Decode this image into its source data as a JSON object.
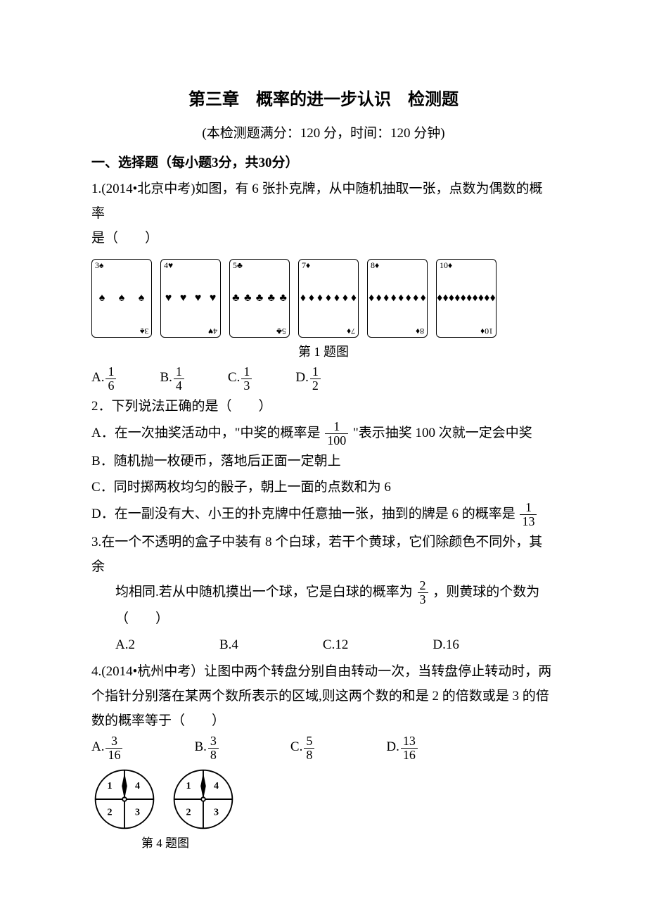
{
  "colors": {
    "text": "#000000",
    "bg": "#ffffff",
    "card_border": "#000000"
  },
  "title": "第三章　概率的进一步认识　检测题",
  "subtitle": "(本检测题满分：120 分，时间：120 分钟)",
  "section1": "一、选择题（每小题3分，共30分）",
  "q1": {
    "text_a": "1.(2014•北京中考)如图，有 6 张扑克牌，从中随机抽取一张，点数为偶数的概率",
    "text_b": "是（　　）",
    "caption": "第 1 题图",
    "cards": [
      {
        "n": "3",
        "suit": "♠",
        "pips": 3
      },
      {
        "n": "4",
        "suit": "♥",
        "pips": 4
      },
      {
        "n": "5",
        "suit": "♣",
        "pips": 5
      },
      {
        "n": "7",
        "suit": "♦",
        "pips": 7
      },
      {
        "n": "8",
        "suit": "♦",
        "pips": 8
      },
      {
        "n": "10",
        "suit": "♦",
        "pips": 10
      }
    ],
    "card_style": {
      "width": 84,
      "height": 110,
      "border_radius": 6,
      "border_color": "#000000"
    },
    "opts": {
      "A": {
        "label": "A.",
        "num": "1",
        "den": "6"
      },
      "B": {
        "label": "B.",
        "num": "1",
        "den": "4"
      },
      "C": {
        "label": "C.",
        "num": "1",
        "den": "3"
      },
      "D": {
        "label": "D.",
        "num": "1",
        "den": "2"
      }
    }
  },
  "q2": {
    "stem": "2．下列说法正确的是（　　）",
    "A": {
      "pre": "A．在一次抽奖活动中，\"中奖的概率是",
      "num": "1",
      "den": "100",
      "post": "\"表示抽奖 100 次就一定会中奖"
    },
    "B": "B．随机抛一枚硬币，落地后正面一定朝上",
    "C": "C．同时掷两枚均匀的骰子，朝上一面的点数和为 6",
    "D": {
      "pre": "D．在一副没有大、小王的扑克牌中任意抽一张，抽到的牌是 6 的概率是",
      "num": "1",
      "den": "13"
    }
  },
  "q3": {
    "l1": "3.在一个不透明的盒子中装有 8 个白球，若干个黄球，它们除颜色不同外，其余",
    "l2_pre": "均相同.若从中随机摸出一个球，它是白球的概率为",
    "l2_num": "2",
    "l2_den": "3",
    "l2_post": "，则黄球的个数为（　　）",
    "opts": {
      "A": "A.2",
      "B": "B.4",
      "C": "C.12",
      "D": "D.16"
    }
  },
  "q4": {
    "l1": "4.(2014•杭州中考）让图中两个转盘分别自由转动一次，当转盘停止转动时，两",
    "l2": "个指针分别落在某两个数所表示的区域,则这两个数的和是 2 的倍数或是 3 的倍",
    "l3": "数的概率等于（　　）",
    "opts": {
      "A": {
        "label": "A.",
        "num": "3",
        "den": "16"
      },
      "B": {
        "label": "B.",
        "num": "3",
        "den": "8"
      },
      "C": {
        "label": "C.",
        "num": "5",
        "den": "8"
      },
      "D": {
        "label": "D.",
        "num": "13",
        "den": "16"
      }
    },
    "caption": "第 4 题图",
    "spinner": {
      "radius": 44,
      "stroke": "#000000",
      "fill": "#ffffff",
      "labels": [
        "1",
        "2",
        "3",
        "4"
      ],
      "label_fontsize": 15,
      "arrow_color": "#000000"
    }
  }
}
